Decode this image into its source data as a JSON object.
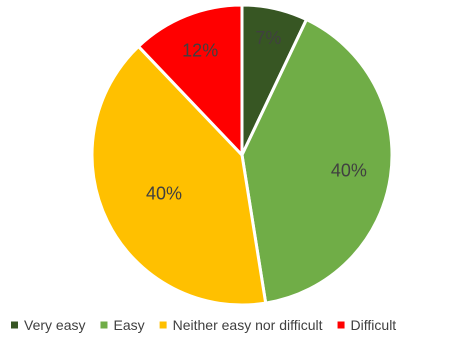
{
  "chart_data": {
    "type": "pie",
    "categories": [
      "Very easy",
      "Easy",
      "Neither easy nor difficult",
      "Difficult"
    ],
    "values": [
      7,
      40,
      40,
      12
    ],
    "data_labels": [
      "7%",
      "40%",
      "40%",
      "12%"
    ],
    "colors": [
      "#375623",
      "#70AD47",
      "#FFC000",
      "#FF0000"
    ],
    "start_angle_deg": 0,
    "direction": "clockwise",
    "legend_position": "bottom"
  }
}
